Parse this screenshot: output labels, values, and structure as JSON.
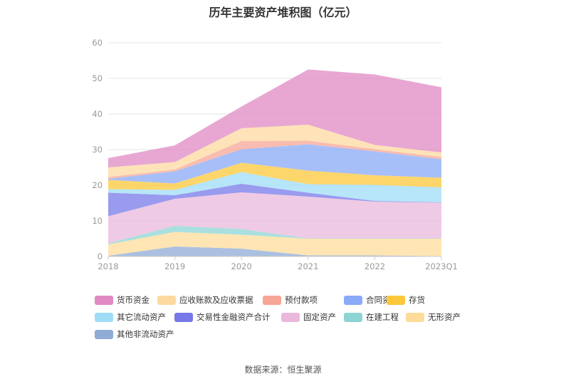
{
  "chart_data": {
    "type": "area",
    "stacked": true,
    "title": "历年主要资产堆积图（亿元）",
    "categories": [
      "2018",
      "2019",
      "2020",
      "2021",
      "2022",
      "2023Q1"
    ],
    "y_ticks": [
      "0",
      "10",
      "20",
      "30",
      "40",
      "50",
      "60"
    ],
    "ylim": [
      0,
      60
    ],
    "grid": true,
    "legend_position": "bottom",
    "series": [
      {
        "name": "其他非流动资产",
        "color": "#8fabd6",
        "values": [
          0.2,
          2.8,
          2.2,
          0.3,
          0.3,
          0.1
        ]
      },
      {
        "name": "无形资产",
        "color": "#fddc9a",
        "values": [
          3.2,
          4.1,
          3.9,
          4.7,
          4.7,
          4.9
        ]
      },
      {
        "name": "在建工程",
        "color": "#8dd4d4",
        "values": [
          0.3,
          1.7,
          1.6,
          0.1,
          0.1,
          0.1
        ]
      },
      {
        "name": "固定资产",
        "color": "#e9b8dc",
        "values": [
          7.6,
          7.6,
          10.3,
          11.7,
          10.3,
          10.0
        ]
      },
      {
        "name": "交易性金融资产合计",
        "color": "#7779e8",
        "values": [
          6.6,
          1.0,
          2.4,
          1.1,
          0.2,
          0.1
        ]
      },
      {
        "name": "其它流动资产",
        "color": "#9fdcf7",
        "values": [
          1.0,
          1.5,
          3.3,
          2.4,
          4.5,
          4.2
        ]
      },
      {
        "name": "存货",
        "color": "#fcc83a",
        "values": [
          2.6,
          1.8,
          2.6,
          3.8,
          2.7,
          2.7
        ]
      },
      {
        "name": "合同资产",
        "color": "#8aaaf7",
        "values": [
          0.3,
          3.4,
          3.8,
          7.4,
          6.7,
          5.2
        ]
      },
      {
        "name": "预付款项",
        "color": "#f7a595",
        "values": [
          0.5,
          0.5,
          2.3,
          1.0,
          0.6,
          0.6
        ]
      },
      {
        "name": "应收账款及应收票据",
        "color": "#fdd9a0",
        "values": [
          2.7,
          2.1,
          3.6,
          4.5,
          1.2,
          1.3
        ]
      },
      {
        "name": "货币资金",
        "color": "#e08ac3",
        "values": [
          2.6,
          4.7,
          6.1,
          15.5,
          19.8,
          18.3
        ]
      }
    ]
  },
  "legend": [
    {
      "label": "货币资金",
      "color": "#e08ac3"
    },
    {
      "label": "应收账款及应收票据",
      "color": "#fdd9a0"
    },
    {
      "label": "预付款项",
      "color": "#f7a595"
    },
    {
      "label": "合同资产",
      "color": "#8aaaf7"
    },
    {
      "label": "存货",
      "color": "#fcc83a"
    },
    {
      "label": "其它流动资产",
      "color": "#9fdcf7"
    },
    {
      "label": "交易性金融资产合计",
      "color": "#7779e8"
    },
    {
      "label": "固定资产",
      "color": "#e9b8dc"
    },
    {
      "label": "在建工程",
      "color": "#8dd4d4"
    },
    {
      "label": "无形资产",
      "color": "#fddc9a"
    },
    {
      "label": "其他非流动资产",
      "color": "#8fabd6"
    }
  ],
  "source": "数据来源：恒生聚源"
}
